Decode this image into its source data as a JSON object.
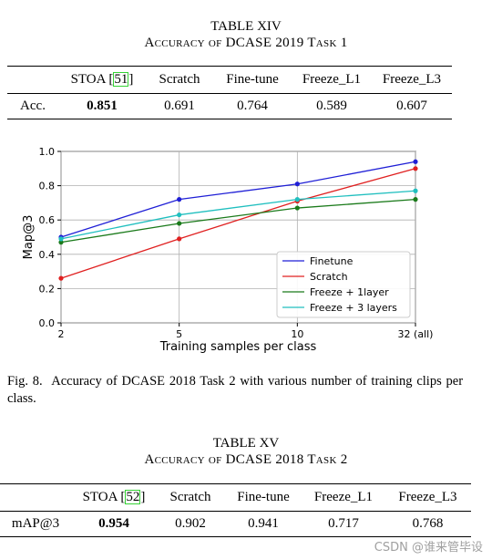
{
  "table14": {
    "title": "TABLE XIV",
    "caption": "Accuracy of DCASE 2019 Task 1",
    "headers": [
      "",
      "STOA [51]",
      "Scratch",
      "Fine-tune",
      "Freeze_L1",
      "Freeze_L3"
    ],
    "row_label": "Acc.",
    "values": [
      "0.851",
      "0.691",
      "0.764",
      "0.589",
      "0.607"
    ]
  },
  "figure": {
    "caption_label": "Fig. 8.",
    "caption_text": "Accuracy of DCASE 2018 Task 2 with various number of training clips per class."
  },
  "chart_data": {
    "type": "line",
    "x": [
      "2",
      "5",
      "10",
      "32 (all)"
    ],
    "xlabel": "Training samples per class",
    "ylabel": "Map@3",
    "ylim": [
      0,
      1
    ],
    "yticks": [
      "0.0",
      "0.2",
      "0.4",
      "0.6",
      "0.8",
      "1.0"
    ],
    "legend_position": "bottom-right",
    "grid": true,
    "series": [
      {
        "name": "Finetune",
        "color": "#1f1fd6",
        "values": [
          0.5,
          0.72,
          0.81,
          0.94
        ]
      },
      {
        "name": "Scratch",
        "color": "#e02020",
        "values": [
          0.26,
          0.49,
          0.71,
          0.9
        ]
      },
      {
        "name": "Freeze + 1layer",
        "color": "#1a7a1a",
        "values": [
          0.47,
          0.58,
          0.67,
          0.72
        ]
      },
      {
        "name": "Freeze + 3 layers",
        "color": "#20bfbf",
        "values": [
          0.49,
          0.63,
          0.72,
          0.77
        ]
      }
    ]
  },
  "table15": {
    "title": "TABLE XV",
    "caption": "Accuracy of DCASE 2018 Task 2",
    "headers": [
      "",
      "STOA [52]",
      "Scratch",
      "Fine-tune",
      "Freeze_L1",
      "Freeze_L3"
    ],
    "row_label": "mAP@3",
    "values": [
      "0.954",
      "0.902",
      "0.941",
      "0.717",
      "0.768"
    ]
  },
  "watermark": "CSDN @谁来管毕设"
}
